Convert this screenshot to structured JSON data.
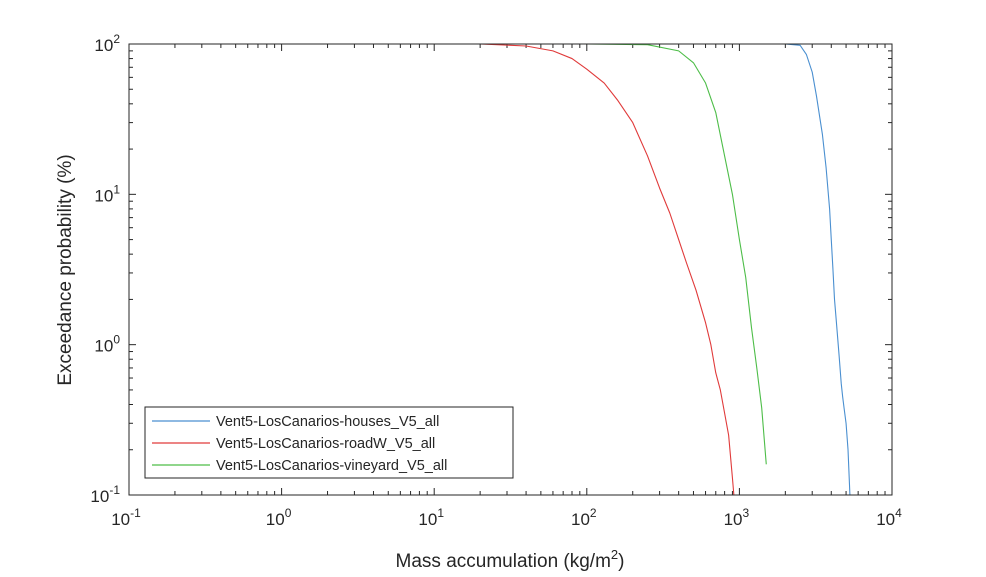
{
  "chart_data": {
    "type": "line",
    "title": "",
    "xlabel": "Mass accumulation (kg/m",
    "xlabel_sup": "2",
    "xlabel_end": ")",
    "ylabel": "Exceedance probability (%)",
    "xscale": "log",
    "yscale": "log",
    "xlim": [
      0.1,
      10000
    ],
    "ylim": [
      0.1,
      100
    ],
    "grid": false,
    "legend_position": "bottom-left",
    "x_ticks": [
      {
        "base": "10",
        "exp": "-1",
        "value": 0.1
      },
      {
        "base": "10",
        "exp": "0",
        "value": 1
      },
      {
        "base": "10",
        "exp": "1",
        "value": 10
      },
      {
        "base": "10",
        "exp": "2",
        "value": 100
      },
      {
        "base": "10",
        "exp": "3",
        "value": 1000
      },
      {
        "base": "10",
        "exp": "4",
        "value": 10000
      }
    ],
    "y_ticks": [
      {
        "base": "10",
        "exp": "-1",
        "value": 0.1
      },
      {
        "base": "10",
        "exp": "0",
        "value": 1
      },
      {
        "base": "10",
        "exp": "1",
        "value": 10
      },
      {
        "base": "10",
        "exp": "2",
        "value": 100
      }
    ],
    "series": [
      {
        "name": "Vent5-LosCanarios-houses_V5_all",
        "color": "#4a8fd0",
        "x": [
          0.1,
          300,
          1000,
          2000,
          2500,
          2750,
          3000,
          3200,
          3500,
          3700,
          3900,
          4000,
          4100,
          4200,
          4300,
          4500,
          4650,
          4750,
          4850,
          5000,
          5150,
          5300
        ],
        "y": [
          100,
          100,
          100,
          100,
          98,
          85,
          65,
          45,
          25,
          15,
          8,
          5,
          3.2,
          2,
          1.5,
          0.85,
          0.55,
          0.45,
          0.38,
          0.3,
          0.2,
          0.1
        ]
      },
      {
        "name": "Vent5-LosCanarios-roadW_V5_all",
        "color": "#e03a3a",
        "x": [
          0.1,
          20,
          40,
          60,
          80,
          100,
          130,
          160,
          200,
          250,
          300,
          350,
          400,
          450,
          520,
          600,
          650,
          700,
          750,
          800,
          850,
          900,
          920
        ],
        "y": [
          100,
          100,
          97,
          90,
          80,
          68,
          55,
          42,
          30,
          18,
          11,
          7.5,
          5,
          3.5,
          2.3,
          1.4,
          1.0,
          0.65,
          0.5,
          0.35,
          0.25,
          0.13,
          0.1
        ]
      },
      {
        "name": "Vent5-LosCanarios-vineyard_V5_all",
        "color": "#4dbd48",
        "x": [
          0.1,
          100,
          250,
          400,
          500,
          600,
          700,
          800,
          900,
          1000,
          1100,
          1200,
          1300,
          1400,
          1500
        ],
        "y": [
          100,
          100,
          99,
          90,
          75,
          55,
          35,
          18,
          10,
          5,
          2.8,
          1.3,
          0.7,
          0.38,
          0.16
        ]
      }
    ]
  }
}
